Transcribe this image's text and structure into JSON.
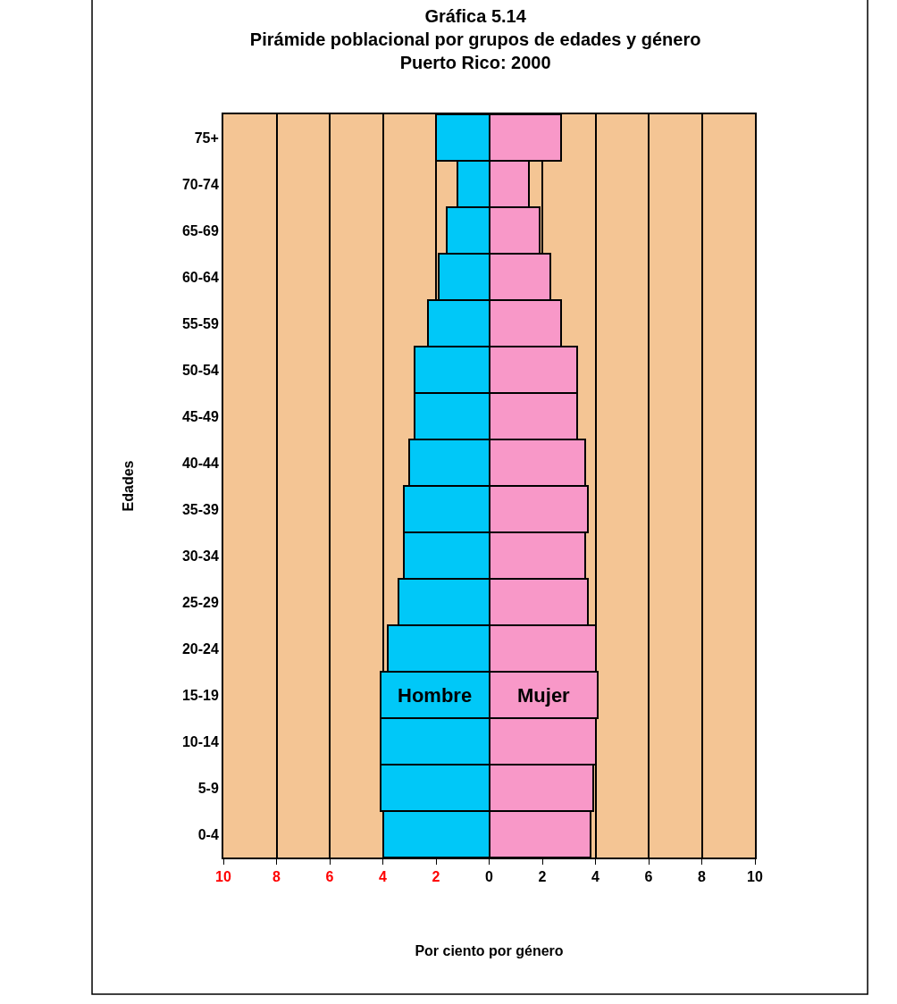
{
  "chart_data": {
    "type": "bar",
    "orientation": "horizontal",
    "stacked": true,
    "title": "Gráfica 5.14\nPirámide poblacional por grupos de edades y género\nPuerto Rico: 2000",
    "xlabel": "Por ciento por género",
    "ylabel": "Edades",
    "categories": [
      "75+",
      "70-74",
      "65-69",
      "60-64",
      "55-59",
      "50-54",
      "45-49",
      "40-44",
      "35-39",
      "30-34",
      "25-29",
      "20-24",
      "15-19",
      "10-14",
      "5-9",
      "0-4"
    ],
    "series": [
      {
        "name": "Hombre",
        "color": "#00c8f8",
        "values": [
          -2.0,
          -1.2,
          -1.6,
          -1.9,
          -2.3,
          -2.8,
          -2.8,
          -3.0,
          -3.2,
          -3.2,
          -3.4,
          -3.8,
          -4.1,
          -4.1,
          -4.1,
          -4.0
        ]
      },
      {
        "name": "Mujer",
        "color": "#f898c8",
        "values": [
          2.7,
          1.5,
          1.9,
          2.3,
          2.7,
          3.3,
          3.3,
          3.6,
          3.7,
          3.6,
          3.7,
          4.0,
          4.1,
          4.0,
          3.9,
          3.8
        ]
      }
    ],
    "xlim": [
      -10,
      10
    ],
    "xticks": [
      {
        "value": -10,
        "label": "10"
      },
      {
        "value": -8,
        "label": "8"
      },
      {
        "value": -6,
        "label": "6"
      },
      {
        "value": -4,
        "label": "4"
      },
      {
        "value": -2,
        "label": "2"
      },
      0,
      2,
      4,
      6,
      8,
      10
    ],
    "grid": "x",
    "legend": false
  }
}
